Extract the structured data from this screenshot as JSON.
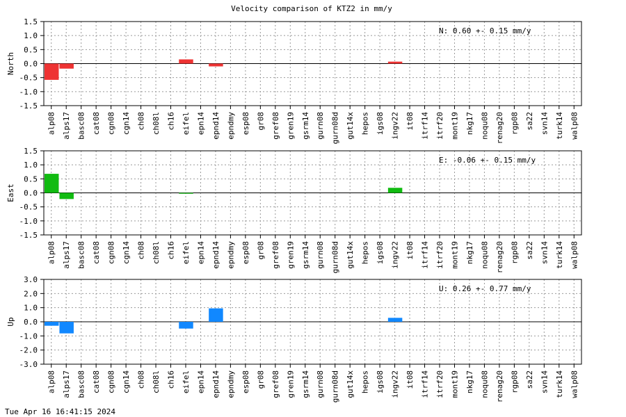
{
  "chart_data": {
    "type": "bar",
    "title": "Velocity comparison of KTZ2 in mm/y",
    "categories": [
      "alp08",
      "alps17",
      "basc08",
      "cat08",
      "cgn08",
      "cgn14",
      "ch08",
      "ch08l",
      "ch16",
      "eifel",
      "epn14",
      "epnd14",
      "epndmy",
      "esp08",
      "gr08",
      "gref08",
      "gren19",
      "gsrm14",
      "gurn08",
      "gurn08d",
      "gut14x",
      "hepos",
      "igs08",
      "ingv22",
      "it08",
      "itrf14",
      "itrf20",
      "mont19",
      "nkg17",
      "noqu08",
      "renag20",
      "rgp08",
      "sa22",
      "svn14",
      "turk14",
      "walp08"
    ],
    "grid": true,
    "panels": [
      {
        "name": "North",
        "ylabel": "North",
        "ylim": [
          -1.5,
          1.5
        ],
        "ticks": [
          "1.5",
          "1.0",
          "0.5",
          "0.0",
          "-0.5",
          "-1.0",
          "-1.5"
        ],
        "tick_values": [
          1.5,
          1.0,
          0.5,
          0.0,
          -0.5,
          -1.0,
          -1.5
        ],
        "color": "#ee3333",
        "annotation": "N:   0.60 +-  0.15 mm/y",
        "values": [
          -0.58,
          -0.18,
          null,
          null,
          null,
          null,
          null,
          null,
          null,
          0.15,
          null,
          -0.1,
          null,
          null,
          null,
          null,
          null,
          null,
          null,
          null,
          null,
          null,
          null,
          0.07,
          null,
          null,
          null,
          null,
          null,
          null,
          null,
          null,
          null,
          null,
          null,
          null
        ]
      },
      {
        "name": "East",
        "ylabel": "East",
        "ylim": [
          -1.5,
          1.5
        ],
        "ticks": [
          "1.5",
          "1.0",
          "0.5",
          "0.0",
          "-0.5",
          "-1.0",
          "-1.5"
        ],
        "tick_values": [
          1.5,
          1.0,
          0.5,
          0.0,
          -0.5,
          -1.0,
          -1.5
        ],
        "color": "#11bb11",
        "annotation": "E:  -0.06 +-  0.15 mm/y",
        "values": [
          0.68,
          -0.22,
          null,
          null,
          null,
          null,
          null,
          null,
          null,
          -0.03,
          null,
          null,
          null,
          null,
          null,
          null,
          null,
          null,
          null,
          null,
          null,
          null,
          null,
          0.18,
          null,
          null,
          null,
          null,
          null,
          null,
          null,
          null,
          null,
          null,
          null,
          null
        ]
      },
      {
        "name": "Up",
        "ylabel": "Up",
        "ylim": [
          -3.0,
          3.0
        ],
        "ticks": [
          "3.0",
          "2.0",
          "1.0",
          "0.0",
          "-1.0",
          "-2.0",
          "-3.0"
        ],
        "tick_values": [
          3.0,
          2.0,
          1.0,
          0.0,
          -1.0,
          -2.0,
          -3.0
        ],
        "color": "#1188ff",
        "annotation": "U:   0.26 +-  0.77 mm/y",
        "values": [
          -0.28,
          -0.82,
          null,
          null,
          null,
          null,
          null,
          null,
          null,
          -0.48,
          null,
          0.95,
          null,
          null,
          null,
          null,
          null,
          null,
          null,
          null,
          null,
          null,
          null,
          0.28,
          null,
          null,
          null,
          null,
          null,
          null,
          null,
          null,
          null,
          null,
          null,
          null
        ]
      }
    ]
  },
  "footer": {
    "timestamp": "Tue Apr 16 16:41:15 2024"
  }
}
